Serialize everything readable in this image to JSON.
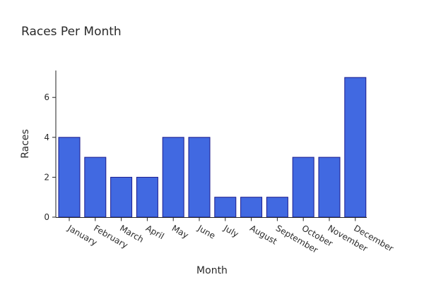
{
  "chart_data": {
    "type": "bar",
    "title": "Races Per Month",
    "xlabel": "Month",
    "ylabel": "Races",
    "categories": [
      "January",
      "February",
      "March",
      "April",
      "May",
      "June",
      "July",
      "August",
      "September",
      "October",
      "November",
      "December"
    ],
    "values": [
      4,
      3,
      2,
      2,
      4,
      4,
      1,
      1,
      1,
      3,
      3,
      7
    ],
    "yticks": [
      0,
      2,
      4,
      6
    ],
    "ylim": [
      0,
      7.35
    ],
    "grid": false,
    "legend": "none",
    "colors": {
      "bar_fill": "#4169e1",
      "bar_stroke": "#1a1a8c",
      "axis": "#222222",
      "text": "#2a2a2a"
    }
  }
}
